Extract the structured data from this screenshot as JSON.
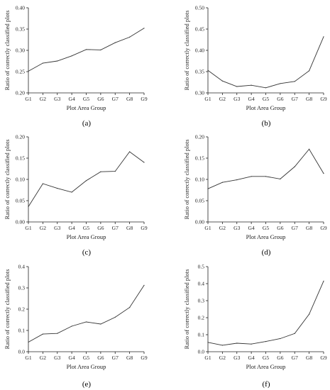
{
  "chart_data": [
    {
      "type": "line",
      "caption": "(a)",
      "categories": [
        "G1",
        "G2",
        "G3",
        "G4",
        "G5",
        "G6",
        "G7",
        "G8",
        "G9"
      ],
      "values": [
        0.251,
        0.27,
        0.275,
        0.287,
        0.302,
        0.301,
        0.318,
        0.331,
        0.352
      ],
      "xlabel": "Plot Area Group",
      "ylabel": "Ratio of correctly classified  plots",
      "ylim": [
        0.2,
        0.4
      ],
      "yticks": [
        "0.20",
        "0.25",
        "0.30",
        "0.35",
        "0.40"
      ]
    },
    {
      "type": "line",
      "caption": "(b)",
      "categories": [
        "G1",
        "G2",
        "G3",
        "G4",
        "G5",
        "G6",
        "G7",
        "G8",
        "G9"
      ],
      "values": [
        0.353,
        0.328,
        0.315,
        0.318,
        0.312,
        0.322,
        0.327,
        0.352,
        0.432
      ],
      "xlabel": "Plot Area Group",
      "ylabel": "Ratio of correctly classified  plots",
      "ylim": [
        0.3,
        0.5
      ],
      "yticks": [
        "0.30",
        "0.35",
        "0.40",
        "0.45",
        "0.50"
      ]
    },
    {
      "type": "line",
      "caption": "(c)",
      "categories": [
        "G1",
        "G2",
        "G3",
        "G4",
        "G5",
        "G6",
        "G7",
        "G8",
        "G9"
      ],
      "values": [
        0.036,
        0.09,
        0.079,
        0.07,
        0.097,
        0.118,
        0.119,
        0.165,
        0.14
      ],
      "xlabel": "Plot Area Group",
      "ylabel": "Ratio of correctly classified  plots",
      "ylim": [
        0.0,
        0.2
      ],
      "yticks": [
        "0.00",
        "0.05",
        "0.10",
        "0.15",
        "0.20"
      ]
    },
    {
      "type": "line",
      "caption": "(d)",
      "categories": [
        "G1",
        "G2",
        "G3",
        "G4",
        "G5",
        "G6",
        "G7",
        "G8",
        "G9"
      ],
      "values": [
        0.078,
        0.093,
        0.099,
        0.107,
        0.107,
        0.101,
        0.13,
        0.171,
        0.114
      ],
      "xlabel": "Plot Area Group",
      "ylabel": "Ratio of correctly classified  plots",
      "ylim": [
        0.0,
        0.2
      ],
      "yticks": [
        "0.00",
        "0.05",
        "0.10",
        "0.15",
        "0.20"
      ]
    },
    {
      "type": "line",
      "caption": "(e)",
      "categories": [
        "G1",
        "G2",
        "G3",
        "G4",
        "G5",
        "G6",
        "G7",
        "G8",
        "G9"
      ],
      "values": [
        0.045,
        0.083,
        0.086,
        0.12,
        0.14,
        0.13,
        0.162,
        0.208,
        0.312
      ],
      "xlabel": "Plot Area Group",
      "ylabel": "Ratio of correctly classified  plots",
      "ylim": [
        0.0,
        0.4
      ],
      "yticks": [
        "0.0",
        "0.1",
        "0.2",
        "0.3",
        "0.4"
      ]
    },
    {
      "type": "line",
      "caption": "(f)",
      "categories": [
        "G1",
        "G2",
        "G3",
        "G4",
        "G5",
        "G6",
        "G7",
        "G8",
        "G9"
      ],
      "values": [
        0.055,
        0.038,
        0.05,
        0.045,
        0.06,
        0.077,
        0.107,
        0.22,
        0.415
      ],
      "xlabel": "Plot Area Group",
      "ylabel": "Ratio of correctly classified  plots",
      "ylim": [
        0.0,
        0.5
      ],
      "yticks": [
        "0.0",
        "0.1",
        "0.2",
        "0.3",
        "0.4",
        "0.5"
      ]
    }
  ]
}
